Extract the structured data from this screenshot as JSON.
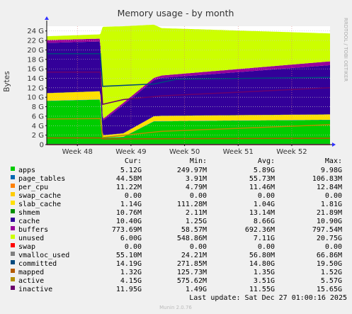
{
  "chart_data": {
    "type": "area",
    "title": "Memory usage - by month",
    "ylabel": "Bytes",
    "side_label": "RRDTOOL / TOBI OETIKER",
    "y_ticks": [
      {
        "value": 0,
        "label": "0"
      },
      {
        "value": 2,
        "label": "2 G"
      },
      {
        "value": 4,
        "label": "4 G"
      },
      {
        "value": 6,
        "label": "6 G"
      },
      {
        "value": 8,
        "label": "8 G"
      },
      {
        "value": 10,
        "label": "10 G"
      },
      {
        "value": 12,
        "label": "12 G"
      },
      {
        "value": 14,
        "label": "14 G"
      },
      {
        "value": 16,
        "label": "16 G"
      },
      {
        "value": 18,
        "label": "18 G"
      },
      {
        "value": 20,
        "label": "20 G"
      },
      {
        "value": 22,
        "label": "22 G"
      },
      {
        "value": 24,
        "label": "24 G"
      }
    ],
    "ylim": [
      0,
      25
    ],
    "xlim": [
      0,
      37
    ],
    "x_ticks": [
      {
        "value": 4,
        "label": "Week 48"
      },
      {
        "value": 11,
        "label": "Week 49"
      },
      {
        "value": 18,
        "label": "Week 50"
      },
      {
        "value": 25,
        "label": "Week 51"
      },
      {
        "value": 32,
        "label": "Week 52"
      }
    ],
    "y_unit": "GB",
    "x_unit": "days since start of plotted window",
    "layers": [
      {
        "name": "apps",
        "color": "#00cc00",
        "points": [
          [
            0,
            9.2
          ],
          [
            7,
            9.5
          ],
          [
            7.3,
            1.4
          ],
          [
            10,
            1.6
          ],
          [
            14,
            4.9
          ],
          [
            37,
            5.2
          ]
        ]
      },
      {
        "name": "page_tables",
        "color": "#0066b3",
        "points": [
          [
            0,
            0.05
          ],
          [
            37,
            0.05
          ]
        ]
      },
      {
        "name": "per_cpu",
        "color": "#ff8000",
        "points": [
          [
            0,
            0.01
          ],
          [
            37,
            0.01
          ]
        ]
      },
      {
        "name": "swap_cache",
        "color": "#ffcc00",
        "points": [
          [
            0,
            0.0
          ],
          [
            37,
            0.0
          ]
        ]
      },
      {
        "name": "slab_cache",
        "color": "#ffe000",
        "points": [
          [
            0,
            1.6
          ],
          [
            7,
            1.7
          ],
          [
            7.3,
            0.5
          ],
          [
            15,
            1.1
          ],
          [
            37,
            1.1
          ]
        ]
      },
      {
        "name": "shmem",
        "color": "#008f00",
        "points": [
          [
            0,
            0.02
          ],
          [
            37,
            0.02
          ]
        ]
      },
      {
        "name": "cache",
        "color": "#330099",
        "points": [
          [
            0,
            10.6
          ],
          [
            7,
            10.5
          ],
          [
            7.3,
            3.0
          ],
          [
            10,
            6.0
          ],
          [
            15,
            8.0
          ],
          [
            37,
            10.4
          ]
        ]
      },
      {
        "name": "buffers",
        "color": "#990099",
        "points": [
          [
            0,
            0.6
          ],
          [
            7,
            0.6
          ],
          [
            7.3,
            0.4
          ],
          [
            37,
            0.8
          ]
        ]
      },
      {
        "name": "unused",
        "color": "#ccff00",
        "points": [
          [
            0,
            0.8
          ],
          [
            7,
            0.9
          ],
          [
            7.3,
            19.5
          ],
          [
            15,
            10.0
          ],
          [
            37,
            5.9
          ]
        ]
      }
    ],
    "lines": [
      {
        "name": "swap",
        "color": "#ff0000",
        "points": [
          [
            0,
            0.0
          ],
          [
            37,
            0.0
          ]
        ]
      },
      {
        "name": "vmalloc_used",
        "color": "#808080",
        "points": [
          [
            0,
            0.06
          ],
          [
            37,
            0.06
          ]
        ]
      },
      {
        "name": "committed",
        "color": "#00487d",
        "points": [
          [
            0,
            19.2
          ],
          [
            7,
            19.2
          ],
          [
            7.3,
            12.3
          ],
          [
            14,
            12.8
          ],
          [
            17,
            13.8
          ],
          [
            37,
            14.2
          ]
        ]
      },
      {
        "name": "mapped",
        "color": "#b35a00",
        "points": [
          [
            0,
            1.4
          ],
          [
            7,
            1.4
          ],
          [
            7.3,
            1.2
          ],
          [
            37,
            1.35
          ]
        ]
      },
      {
        "name": "active",
        "color": "#b38f00",
        "points": [
          [
            0,
            5.4
          ],
          [
            7,
            5.5
          ],
          [
            7.3,
            1.5
          ],
          [
            15,
            2.8
          ],
          [
            37,
            4.2
          ]
        ]
      },
      {
        "name": "inactive",
        "color": "#6b006b",
        "points": [
          [
            0,
            15.3
          ],
          [
            7,
            15.3
          ],
          [
            7.3,
            8.5
          ],
          [
            10,
            9.5
          ],
          [
            15,
            10.3
          ],
          [
            37,
            12.0
          ]
        ]
      }
    ]
  },
  "legend": {
    "headers": [
      "Cur:",
      "Min:",
      "Avg:",
      "Max:"
    ],
    "rows": [
      {
        "name": "apps",
        "color": "#00cc00",
        "cur": "5.12G",
        "min": "249.97M",
        "avg": "5.89G",
        "max": "9.98G"
      },
      {
        "name": "page_tables",
        "color": "#0066b3",
        "cur": "44.58M",
        "min": "3.91M",
        "avg": "55.73M",
        "max": "106.83M"
      },
      {
        "name": "per_cpu",
        "color": "#ff8000",
        "cur": "11.22M",
        "min": "4.79M",
        "avg": "11.46M",
        "max": "12.84M"
      },
      {
        "name": "swap_cache",
        "color": "#ffcc00",
        "cur": "0.00",
        "min": "0.00",
        "avg": "0.00",
        "max": "0.00"
      },
      {
        "name": "slab_cache",
        "color": "#ffe000",
        "cur": "1.14G",
        "min": "111.28M",
        "avg": "1.04G",
        "max": "1.81G"
      },
      {
        "name": "shmem",
        "color": "#008f00",
        "cur": "10.76M",
        "min": "2.11M",
        "avg": "13.14M",
        "max": "21.89M"
      },
      {
        "name": "cache",
        "color": "#330099",
        "cur": "10.40G",
        "min": "1.25G",
        "avg": "8.66G",
        "max": "10.90G"
      },
      {
        "name": "buffers",
        "color": "#990099",
        "cur": "773.69M",
        "min": "58.57M",
        "avg": "692.36M",
        "max": "797.54M"
      },
      {
        "name": "unused",
        "color": "#ccff00",
        "cur": "6.00G",
        "min": "548.86M",
        "avg": "7.11G",
        "max": "20.75G"
      },
      {
        "name": "swap",
        "color": "#ff0000",
        "cur": "0.00",
        "min": "0.00",
        "avg": "0.00",
        "max": "0.00"
      },
      {
        "name": "vmalloc_used",
        "color": "#808080",
        "cur": "55.10M",
        "min": "24.21M",
        "avg": "56.80M",
        "max": "66.86M"
      },
      {
        "name": "committed",
        "color": "#00487d",
        "cur": "14.19G",
        "min": "271.85M",
        "avg": "14.80G",
        "max": "19.50G"
      },
      {
        "name": "mapped",
        "color": "#b35a00",
        "cur": "1.32G",
        "min": "125.73M",
        "avg": "1.35G",
        "max": "1.52G"
      },
      {
        "name": "active",
        "color": "#b38f00",
        "cur": "4.15G",
        "min": "575.62M",
        "avg": "3.51G",
        "max": "5.57G"
      },
      {
        "name": "inactive",
        "color": "#6b006b",
        "cur": "11.95G",
        "min": "1.49G",
        "avg": "11.55G",
        "max": "15.65G"
      }
    ]
  },
  "footer": {
    "last_update": "Last update: Sat Dec 27 01:00:16 2025",
    "version": "Munin 2.0.76"
  }
}
